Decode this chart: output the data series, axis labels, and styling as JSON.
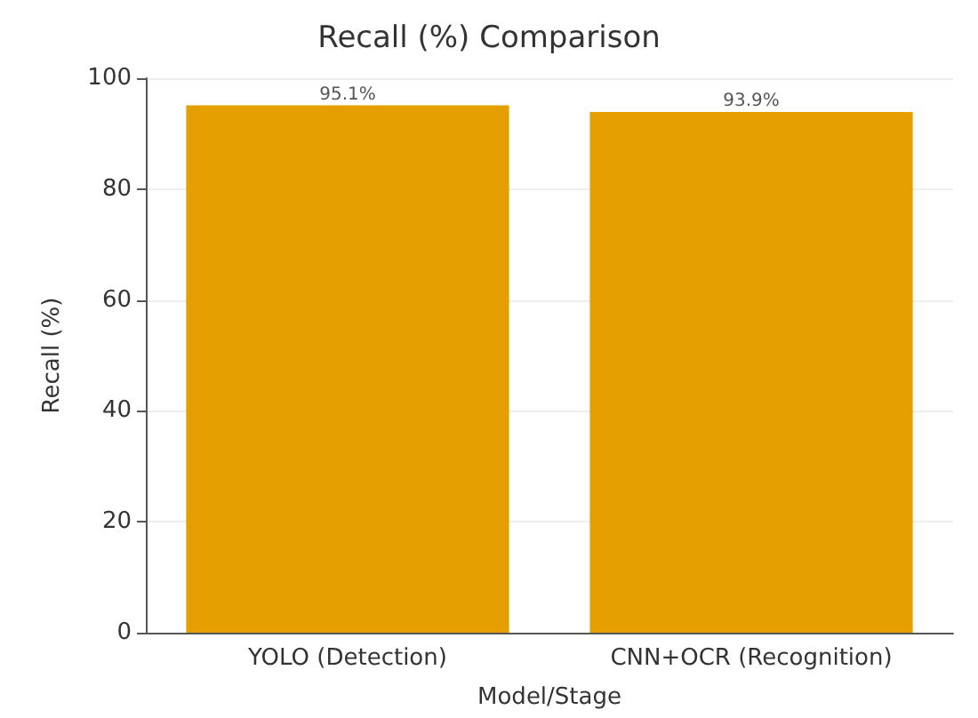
{
  "chart_data": {
    "type": "bar",
    "title": "Recall (%) Comparison",
    "xlabel": "Model/Stage",
    "ylabel": "Recall (%)",
    "categories": [
      "YOLO (Detection)",
      "CNN+OCR (Recognition)"
    ],
    "values": [
      95.1,
      93.9
    ],
    "value_labels": [
      "95.1%",
      "93.9%"
    ],
    "color": "#e69f00",
    "ylim": [
      0,
      100
    ],
    "yticks": [
      0,
      20,
      40,
      60,
      80,
      100
    ],
    "grid": "y"
  }
}
